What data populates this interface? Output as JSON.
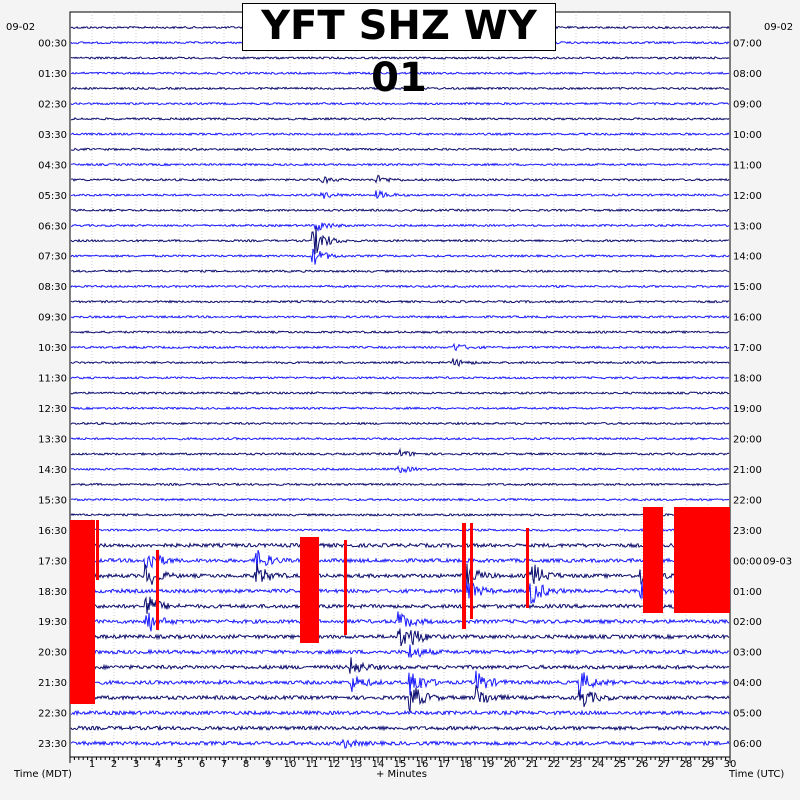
{
  "chart_data": {
    "type": "line",
    "title": "YFT SHZ WY 01",
    "left_date": "09-02",
    "right_date": "09-02",
    "right_date_change": "09-03",
    "xlabel": "+ Minutes",
    "left_axis_label": "Time (MDT)",
    "right_axis_label": "Time (UTC)",
    "xlim": [
      0,
      30
    ],
    "x_ticks": [
      "1",
      "2",
      "3",
      "4",
      "5",
      "6",
      "7",
      "8",
      "9",
      "10",
      "11",
      "12",
      "13",
      "14",
      "15",
      "16",
      "17",
      "18",
      "19",
      "20",
      "21",
      "22",
      "23",
      "24",
      "25",
      "26",
      "27",
      "28",
      "29",
      "30"
    ],
    "left_labels": [
      "00:30",
      "01:30",
      "02:30",
      "03:30",
      "04:30",
      "05:30",
      "06:30",
      "07:30",
      "08:30",
      "09:30",
      "10:30",
      "11:30",
      "12:30",
      "13:30",
      "14:30",
      "15:30",
      "16:30",
      "17:30",
      "18:30",
      "19:30",
      "20:30",
      "21:30",
      "22:30",
      "23:30"
    ],
    "right_labels": [
      "07:00",
      "08:00",
      "09:00",
      "10:00",
      "11:00",
      "12:00",
      "13:00",
      "14:00",
      "15:00",
      "16:00",
      "17:00",
      "18:00",
      "19:00",
      "20:00",
      "21:00",
      "22:00",
      "23:00",
      "00:00",
      "01:00",
      "02:00",
      "03:00",
      "04:00",
      "05:00",
      "06:00"
    ],
    "trace_count": 48,
    "trace_colors": [
      "#0b0b6e",
      "#1a1aff"
    ],
    "clip_color": "#ff0000",
    "grid": true,
    "events": [
      {
        "trace": 10,
        "minute": 11.5,
        "amplitude": 0.5
      },
      {
        "trace": 10,
        "minute": 14.0,
        "amplitude": 0.6
      },
      {
        "trace": 13,
        "minute": 11.2,
        "amplitude": 1.0
      },
      {
        "trace": 14,
        "minute": 11.1,
        "amplitude": 1.4
      },
      {
        "trace": 21,
        "minute": 17.5,
        "amplitude": 0.6
      },
      {
        "trace": 28,
        "minute": 15.0,
        "amplitude": 0.6
      },
      {
        "trace": 35,
        "minute": 3.5,
        "amplitude": 2.0
      },
      {
        "trace": 35,
        "minute": 8.5,
        "amplitude": 1.8
      },
      {
        "trace": 36,
        "minute": 18.0,
        "amplitude": 2.0
      },
      {
        "trace": 36,
        "minute": 21.0,
        "amplitude": 2.2
      },
      {
        "trace": 36,
        "minute": 26.0,
        "amplitude": 1.6
      },
      {
        "trace": 38,
        "minute": 3.5,
        "amplitude": 2.0
      },
      {
        "trace": 39,
        "minute": 15.0,
        "amplitude": 1.6
      },
      {
        "trace": 40,
        "minute": 15.5,
        "amplitude": 1.2
      },
      {
        "trace": 42,
        "minute": 12.8,
        "amplitude": 1.4
      },
      {
        "trace": 43,
        "minute": 15.5,
        "amplitude": 2.4
      },
      {
        "trace": 43,
        "minute": 18.5,
        "amplitude": 1.8
      },
      {
        "trace": 43,
        "minute": 23.2,
        "amplitude": 2.0
      },
      {
        "trace": 47,
        "minute": 12.5,
        "amplitude": 0.6
      }
    ]
  }
}
